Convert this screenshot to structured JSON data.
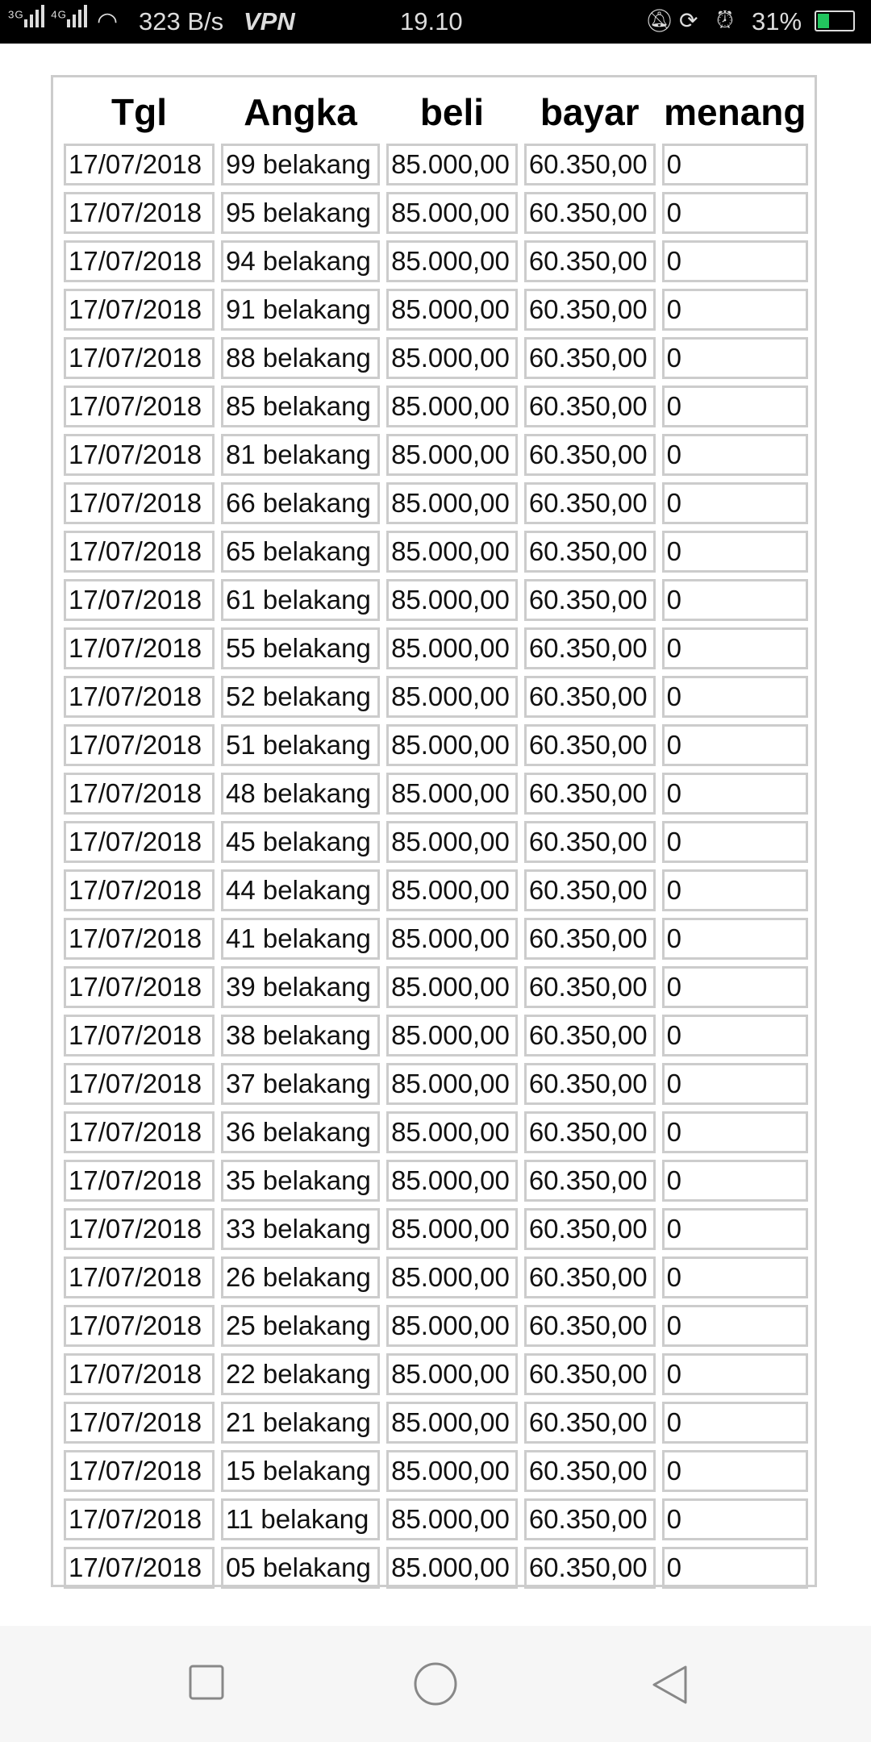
{
  "status_bar": {
    "network1": "3G",
    "network2": "4G",
    "speed": "323 B/s",
    "vpn": "VPN",
    "time": "19.10",
    "battery": "31%",
    "battery_color": "#22c55e"
  },
  "table": {
    "headers": [
      "Tgl",
      "Angka",
      "beli",
      "bayar",
      "menang"
    ],
    "rows": [
      [
        "17/07/2018",
        "99 belakang",
        "85.000,00",
        "60.350,00",
        "0"
      ],
      [
        "17/07/2018",
        "95 belakang",
        "85.000,00",
        "60.350,00",
        "0"
      ],
      [
        "17/07/2018",
        "94 belakang",
        "85.000,00",
        "60.350,00",
        "0"
      ],
      [
        "17/07/2018",
        "91 belakang",
        "85.000,00",
        "60.350,00",
        "0"
      ],
      [
        "17/07/2018",
        "88 belakang",
        "85.000,00",
        "60.350,00",
        "0"
      ],
      [
        "17/07/2018",
        "85 belakang",
        "85.000,00",
        "60.350,00",
        "0"
      ],
      [
        "17/07/2018",
        "81 belakang",
        "85.000,00",
        "60.350,00",
        "0"
      ],
      [
        "17/07/2018",
        "66 belakang",
        "85.000,00",
        "60.350,00",
        "0"
      ],
      [
        "17/07/2018",
        "65 belakang",
        "85.000,00",
        "60.350,00",
        "0"
      ],
      [
        "17/07/2018",
        "61 belakang",
        "85.000,00",
        "60.350,00",
        "0"
      ],
      [
        "17/07/2018",
        "55 belakang",
        "85.000,00",
        "60.350,00",
        "0"
      ],
      [
        "17/07/2018",
        "52 belakang",
        "85.000,00",
        "60.350,00",
        "0"
      ],
      [
        "17/07/2018",
        "51 belakang",
        "85.000,00",
        "60.350,00",
        "0"
      ],
      [
        "17/07/2018",
        "48 belakang",
        "85.000,00",
        "60.350,00",
        "0"
      ],
      [
        "17/07/2018",
        "45 belakang",
        "85.000,00",
        "60.350,00",
        "0"
      ],
      [
        "17/07/2018",
        "44 belakang",
        "85.000,00",
        "60.350,00",
        "0"
      ],
      [
        "17/07/2018",
        "41 belakang",
        "85.000,00",
        "60.350,00",
        "0"
      ],
      [
        "17/07/2018",
        "39 belakang",
        "85.000,00",
        "60.350,00",
        "0"
      ],
      [
        "17/07/2018",
        "38 belakang",
        "85.000,00",
        "60.350,00",
        "0"
      ],
      [
        "17/07/2018",
        "37 belakang",
        "85.000,00",
        "60.350,00",
        "0"
      ],
      [
        "17/07/2018",
        "36 belakang",
        "85.000,00",
        "60.350,00",
        "0"
      ],
      [
        "17/07/2018",
        "35 belakang",
        "85.000,00",
        "60.350,00",
        "0"
      ],
      [
        "17/07/2018",
        "33 belakang",
        "85.000,00",
        "60.350,00",
        "0"
      ],
      [
        "17/07/2018",
        "26 belakang",
        "85.000,00",
        "60.350,00",
        "0"
      ],
      [
        "17/07/2018",
        "25 belakang",
        "85.000,00",
        "60.350,00",
        "0"
      ],
      [
        "17/07/2018",
        "22 belakang",
        "85.000,00",
        "60.350,00",
        "0"
      ],
      [
        "17/07/2018",
        "21 belakang",
        "85.000,00",
        "60.350,00",
        "0"
      ],
      [
        "17/07/2018",
        "15 belakang",
        "85.000,00",
        "60.350,00",
        "0"
      ],
      [
        "17/07/2018",
        "11 belakang",
        "85.000,00",
        "60.350,00",
        "0"
      ],
      [
        "17/07/2018",
        "05 belakang",
        "85.000,00",
        "60.350,00",
        "0"
      ]
    ]
  },
  "nav_bar": {
    "icons": [
      "recents-square-icon",
      "home-circle-icon",
      "back-triangle-icon"
    ]
  }
}
